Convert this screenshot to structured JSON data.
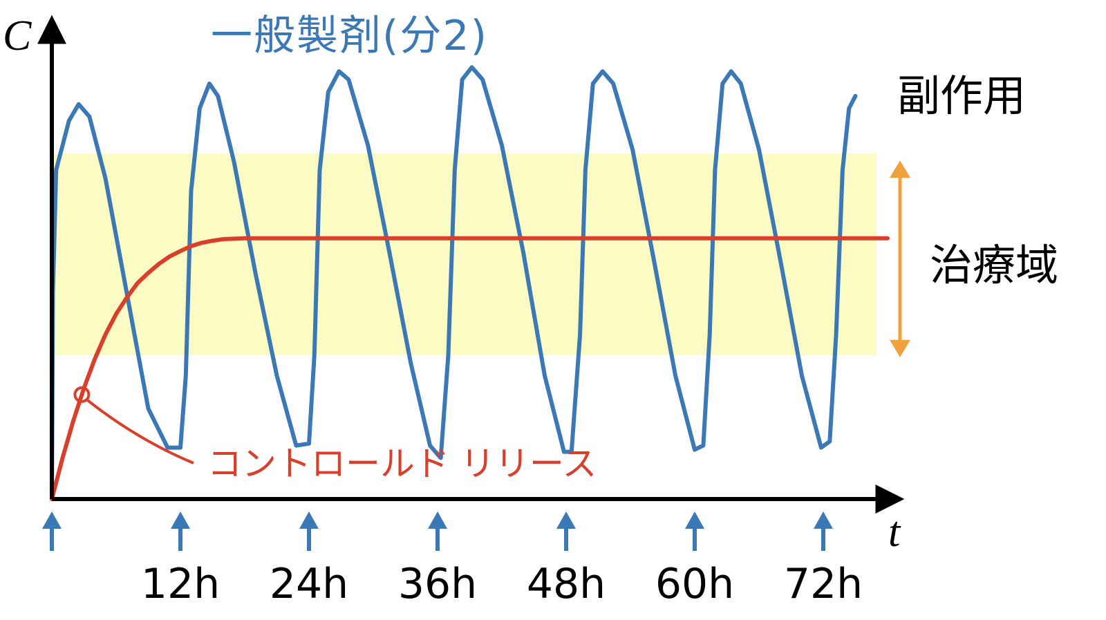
{
  "chart_data": {
    "type": "line",
    "title": "",
    "xlabel": "t",
    "ylabel": "C",
    "x_tick_labels": [
      "12h",
      "24h",
      "36h",
      "48h",
      "60h",
      "72h"
    ],
    "dose_times_h": [
      0,
      12,
      24,
      36,
      48,
      60,
      72
    ],
    "xlim": [
      0,
      78
    ],
    "ylim": [
      0,
      1
    ],
    "grid": false,
    "bands": [
      {
        "label": "治療域",
        "y_range": [
          0.35,
          0.84
        ],
        "color": "#fdfbc4",
        "arrow_color": "#f0a03c"
      }
    ],
    "region_labels": [
      {
        "label": "副作用",
        "position": "above-band"
      }
    ],
    "series": [
      {
        "name": "一般製剤(分2)",
        "color": "#3a78b6",
        "points": [
          [
            0,
            0
          ],
          [
            0.1,
            0.5
          ],
          [
            0.4,
            0.8
          ],
          [
            1.6,
            0.92
          ],
          [
            2.5,
            0.96
          ],
          [
            3.5,
            0.93
          ],
          [
            5,
            0.78
          ],
          [
            7,
            0.5
          ],
          [
            9,
            0.22
          ],
          [
            10.8,
            0.125
          ],
          [
            12,
            0.125
          ],
          [
            12.5,
            0.3
          ],
          [
            13,
            0.75
          ],
          [
            13.8,
            0.95
          ],
          [
            14.7,
            1.01
          ],
          [
            15.5,
            0.98
          ],
          [
            17,
            0.82
          ],
          [
            19,
            0.55
          ],
          [
            21,
            0.3
          ],
          [
            22.8,
            0.13
          ],
          [
            24,
            0.135
          ],
          [
            24.5,
            0.35
          ],
          [
            25,
            0.8
          ],
          [
            25.8,
            0.99
          ],
          [
            26.8,
            1.04
          ],
          [
            27.7,
            1.02
          ],
          [
            29.5,
            0.86
          ],
          [
            31.5,
            0.6
          ],
          [
            33.5,
            0.33
          ],
          [
            35.3,
            0.13
          ],
          [
            36.3,
            0.1
          ],
          [
            37,
            0.35
          ],
          [
            37.6,
            0.8
          ],
          [
            38.3,
            1.02
          ],
          [
            39.2,
            1.05
          ],
          [
            40.2,
            1.02
          ],
          [
            42,
            0.86
          ],
          [
            44,
            0.6
          ],
          [
            46,
            0.3
          ],
          [
            47.8,
            0.115
          ],
          [
            48.5,
            0.115
          ],
          [
            49.3,
            0.4
          ],
          [
            49.8,
            0.8
          ],
          [
            50.5,
            1.01
          ],
          [
            51.4,
            1.04
          ],
          [
            52.4,
            1.01
          ],
          [
            54.2,
            0.85
          ],
          [
            56.2,
            0.58
          ],
          [
            58.2,
            0.3
          ],
          [
            60,
            0.12
          ],
          [
            60.8,
            0.13
          ],
          [
            61.4,
            0.4
          ],
          [
            61.9,
            0.8
          ],
          [
            62.6,
            1.01
          ],
          [
            63.4,
            1.04
          ],
          [
            64.3,
            1.01
          ],
          [
            66,
            0.85
          ],
          [
            68,
            0.58
          ],
          [
            70,
            0.3
          ],
          [
            71.8,
            0.125
          ],
          [
            72.6,
            0.14
          ],
          [
            73.2,
            0.4
          ],
          [
            73.8,
            0.8
          ],
          [
            74.4,
            0.95
          ],
          [
            75,
            0.98
          ]
        ]
      },
      {
        "name": "コントロールド リリース",
        "color": "#d9402b",
        "points": [
          [
            0,
            0
          ],
          [
            1,
            0.1
          ],
          [
            2,
            0.19
          ],
          [
            3,
            0.27
          ],
          [
            4,
            0.34
          ],
          [
            5,
            0.4
          ],
          [
            6,
            0.45
          ],
          [
            7,
            0.49
          ],
          [
            8,
            0.525
          ],
          [
            9,
            0.55
          ],
          [
            10,
            0.572
          ],
          [
            11,
            0.59
          ],
          [
            12,
            0.603
          ],
          [
            13,
            0.615
          ],
          [
            14,
            0.623
          ],
          [
            15,
            0.628
          ],
          [
            16,
            0.632
          ],
          [
            17,
            0.633
          ],
          [
            18,
            0.634
          ],
          [
            78,
            0.634
          ]
        ],
        "marker_x": 2.8
      }
    ]
  }
}
